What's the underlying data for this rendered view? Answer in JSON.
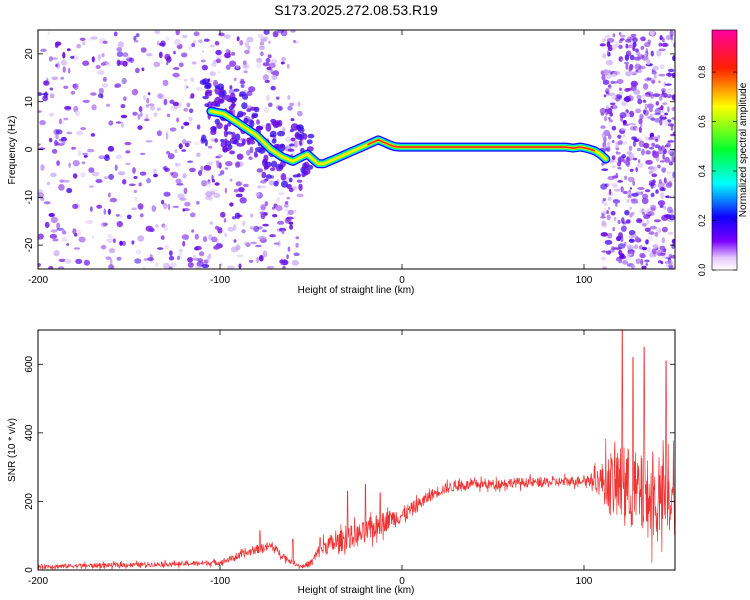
{
  "title": "S173.2025.272.08.53.R19",
  "colors": {
    "trace": "#ee3333",
    "axis": "#000000",
    "scatter": "#7a1fe0"
  },
  "chart_data": [
    {
      "type": "heatmap",
      "title": "S173.2025.272.08.53.R19",
      "xlabel": "Height of straight line (km)",
      "ylabel": "Frequency (Hz)",
      "xlim": [
        -200,
        150
      ],
      "ylim": [
        -25,
        25
      ],
      "xticks": [
        -200,
        -100,
        0,
        100
      ],
      "xtick_labels": [
        "-200",
        "-100",
        "0",
        "100"
      ],
      "yticks": [
        -20,
        -10,
        0,
        10,
        20
      ],
      "ytick_labels": [
        "-20",
        "-10",
        "0",
        "10",
        "20"
      ],
      "colorbar": {
        "label": "Normalized spectral amplitude",
        "range": [
          0,
          0.97
        ],
        "ticks": [
          0,
          0.2,
          0.4,
          0.6,
          0.8
        ],
        "tick_labels": [
          "0.0",
          "0.2",
          "0.4",
          "0.6",
          "0.8"
        ],
        "colormap": "rainbow"
      },
      "ridge": {
        "description": "dominant frequency track (normalized amplitude ~0.9)",
        "x": [
          -105,
          -98,
          -92,
          -86,
          -80,
          -76,
          -72,
          -66,
          -60,
          -55,
          -52,
          -49,
          -46,
          -43,
          -40,
          -37,
          -34,
          -31,
          -28,
          -25,
          -22,
          -19,
          -16,
          -13,
          -10,
          -7,
          -4,
          -1,
          2,
          10,
          30,
          50,
          70,
          90,
          94,
          98,
          102,
          106,
          109,
          112
        ],
        "y": [
          8,
          7.5,
          6,
          4.5,
          3,
          1.5,
          0,
          -1.5,
          -2.5,
          -1.5,
          -1,
          -2,
          -3,
          -3,
          -2.5,
          -2,
          -1.5,
          -1,
          -0.5,
          0,
          0.5,
          1,
          1.5,
          2,
          1.5,
          1,
          0.6,
          0.5,
          0.5,
          0.5,
          0.5,
          0.5,
          0.5,
          0.5,
          0.3,
          0.5,
          0.2,
          -0.3,
          -1,
          -2
        ]
      },
      "scatter_regions": [
        {
          "x_range": [
            -200,
            -80
          ],
          "density": "high",
          "amplitude": "0.1-0.4"
        },
        {
          "x_range": [
            -80,
            -55
          ],
          "density": "medium",
          "amplitude": "0.1-0.3"
        },
        {
          "x_range": [
            110,
            150
          ],
          "density": "high",
          "amplitude": "0.1-0.3"
        }
      ]
    },
    {
      "type": "line",
      "xlabel": "Height of straight line (km)",
      "ylabel": "SNR (10 * v/v)",
      "xlim": [
        -200,
        150
      ],
      "ylim": [
        0,
        700
      ],
      "xticks": [
        -200,
        -100,
        0,
        100
      ],
      "xtick_labels": [
        "-200",
        "-100",
        "0",
        "100"
      ],
      "yticks": [
        0,
        200,
        400,
        600
      ],
      "ytick_labels": [
        "0",
        "200",
        "400",
        "600"
      ],
      "series": [
        {
          "name": "SNR",
          "x": [
            -200,
            -180,
            -160,
            -140,
            -120,
            -100,
            -90,
            -80,
            -72,
            -65,
            -60,
            -55,
            -50,
            -45,
            -40,
            -35,
            -30,
            -25,
            -20,
            -15,
            -10,
            -5,
            0,
            5,
            10,
            15,
            20,
            25,
            30,
            40,
            50,
            60,
            70,
            80,
            90,
            100,
            105,
            110,
            115,
            120,
            125,
            130,
            135,
            140,
            145,
            150
          ],
          "mean": [
            10,
            12,
            14,
            16,
            18,
            22,
            40,
            60,
            70,
            40,
            20,
            10,
            20,
            60,
            75,
            80,
            95,
            100,
            110,
            125,
            140,
            150,
            160,
            175,
            195,
            215,
            230,
            240,
            245,
            250,
            250,
            255,
            255,
            255,
            258,
            262,
            262,
            260,
            250,
            245,
            240,
            220,
            210,
            200,
            200,
            200
          ],
          "spread": [
            12,
            12,
            12,
            12,
            12,
            15,
            18,
            22,
            25,
            18,
            10,
            10,
            20,
            40,
            50,
            55,
            60,
            60,
            60,
            60,
            55,
            50,
            45,
            40,
            35,
            30,
            30,
            28,
            28,
            25,
            25,
            25,
            25,
            25,
            25,
            25,
            40,
            100,
            180,
            210,
            220,
            220,
            210,
            200,
            200,
            200
          ],
          "peaks": [
            [
              -78,
              115
            ],
            [
              -60,
              90
            ],
            [
              -45,
              95
            ],
            [
              -30,
              230
            ],
            [
              -20,
              250
            ],
            [
              -12,
              225
            ],
            [
              -6,
              160
            ],
            [
              121,
              700
            ],
            [
              127,
              620
            ],
            [
              133,
              650
            ],
            [
              145,
              610
            ]
          ]
        }
      ]
    }
  ]
}
